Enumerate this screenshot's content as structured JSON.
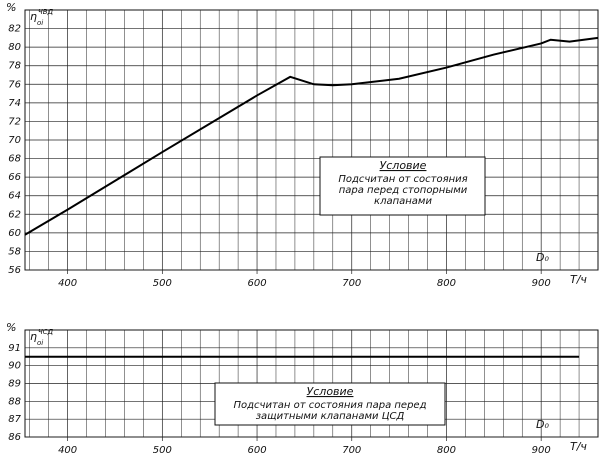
{
  "chart_data": [
    {
      "type": "line",
      "y_unit": "%",
      "y_label": "η",
      "y_label_superscript": "ЧВД",
      "y_label_subscript": "oi",
      "x_label": "D₀",
      "x_unit": "T/ч",
      "note_title": "Условие",
      "note_lines": [
        "Подсчитан от состояния",
        "пара перед стопорными",
        "клапанами"
      ],
      "xlim": [
        355,
        960
      ],
      "ylim": [
        56,
        84
      ],
      "xticks": [
        400,
        500,
        600,
        700,
        800,
        900
      ],
      "x_minor_ticks": [
        360,
        380,
        420,
        440,
        460,
        480,
        520,
        540,
        560,
        580,
        620,
        640,
        660,
        680,
        720,
        740,
        760,
        780,
        820,
        840,
        860,
        880,
        920,
        940
      ],
      "yticks": [
        56,
        58,
        60,
        62,
        64,
        66,
        68,
        70,
        72,
        74,
        76,
        78,
        80,
        82
      ],
      "grid": true,
      "color": "#000000",
      "x": [
        355,
        400,
        500,
        600,
        635,
        660,
        680,
        700,
        750,
        800,
        850,
        900,
        910,
        930,
        960
      ],
      "values": [
        59.8,
        62.5,
        68.7,
        74.8,
        76.8,
        76.0,
        75.9,
        76.0,
        76.6,
        77.8,
        79.2,
        80.4,
        80.8,
        80.6,
        81.0
      ]
    },
    {
      "type": "line",
      "y_unit": "%",
      "y_label": "η",
      "y_label_superscript": "ЧСД",
      "y_label_subscript": "oi",
      "x_label": "D₀",
      "x_unit": "T/ч",
      "note_title": "Условие",
      "note_lines": [
        "Подсчитан от состояния пара перед",
        "защитными клапанами ЦСД"
      ],
      "xlim": [
        355,
        960
      ],
      "ylim": [
        86,
        92
      ],
      "xticks": [
        400,
        500,
        600,
        700,
        800,
        900
      ],
      "x_minor_ticks": [
        360,
        380,
        420,
        440,
        460,
        480,
        520,
        540,
        560,
        580,
        620,
        640,
        660,
        680,
        720,
        740,
        760,
        780,
        820,
        840,
        860,
        880,
        920,
        940
      ],
      "yticks": [
        86,
        87,
        88,
        89,
        90,
        91
      ],
      "grid": true,
      "color": "#000000",
      "x": [
        355,
        940
      ],
      "values": [
        90.5,
        90.5
      ]
    }
  ]
}
